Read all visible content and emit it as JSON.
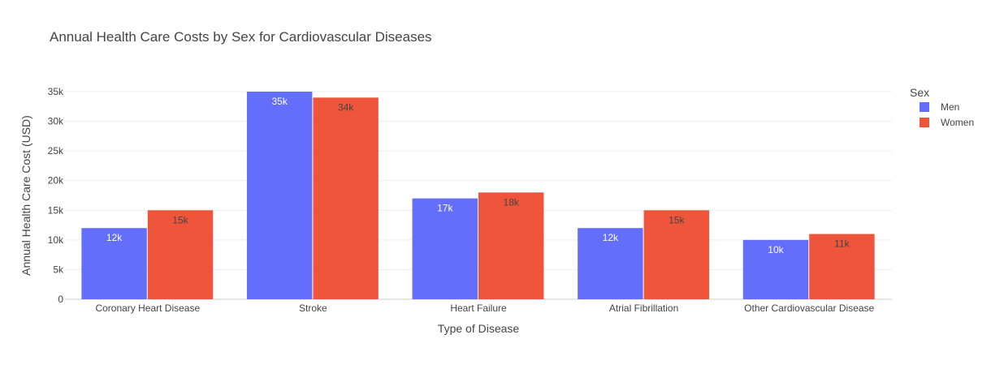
{
  "chart_data": {
    "type": "bar",
    "title": "Annual Health Care Costs by Sex for Cardiovascular Diseases",
    "xlabel": "Type of Disease",
    "ylabel": "Annual Health Care Cost (USD)",
    "categories": [
      "Coronary Heart Disease",
      "Stroke",
      "Heart Failure",
      "Atrial Fibrillation",
      "Other Cardiovascular Disease"
    ],
    "series": [
      {
        "name": "Men",
        "color": "#636efa",
        "values": [
          12000,
          35000,
          17000,
          12000,
          10000
        ],
        "labels": [
          "12k",
          "35k",
          "17k",
          "12k",
          "10k"
        ],
        "label_color": "#ffffff"
      },
      {
        "name": "Women",
        "color": "#ef553b",
        "values": [
          15000,
          34000,
          18000,
          15000,
          11000
        ],
        "labels": [
          "15k",
          "34k",
          "18k",
          "15k",
          "11k"
        ],
        "label_color": "#444444"
      }
    ],
    "ylim": [
      0,
      35000
    ],
    "yticks": [
      0,
      5000,
      10000,
      15000,
      20000,
      25000,
      30000,
      35000
    ],
    "ytick_labels": [
      "0",
      "5k",
      "10k",
      "15k",
      "20k",
      "25k",
      "30k",
      "35k"
    ],
    "grid": true,
    "legend": {
      "title": "Sex",
      "position": "top-right"
    }
  }
}
